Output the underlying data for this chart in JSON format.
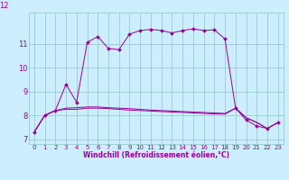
{
  "xlabel": "Windchill (Refroidissement éolien,°C)",
  "bg_color": "#cceeff",
  "line_color": "#990099",
  "grid_color": "#99cccc",
  "xlim": [
    -0.5,
    23.5
  ],
  "ylim": [
    6.8,
    12.3
  ],
  "xticks": [
    0,
    1,
    2,
    3,
    4,
    5,
    6,
    7,
    8,
    9,
    10,
    11,
    12,
    13,
    14,
    15,
    16,
    17,
    18,
    19,
    20,
    21,
    22,
    23
  ],
  "yticks": [
    7,
    8,
    9,
    10,
    11
  ],
  "hours": [
    0,
    1,
    2,
    3,
    4,
    5,
    6,
    7,
    8,
    9,
    10,
    11,
    12,
    13,
    14,
    15,
    16,
    17,
    18,
    19,
    20,
    21,
    22,
    23
  ],
  "windchill": [
    7.3,
    8.0,
    8.2,
    9.3,
    8.55,
    11.05,
    11.3,
    10.8,
    10.75,
    11.4,
    11.55,
    11.6,
    11.55,
    11.45,
    11.55,
    11.62,
    11.55,
    11.58,
    11.2,
    8.3,
    7.8,
    7.55,
    7.45,
    7.7
  ],
  "temp_line1": [
    7.3,
    8.0,
    8.2,
    8.25,
    8.25,
    8.3,
    8.3,
    8.28,
    8.25,
    8.22,
    8.2,
    8.18,
    8.16,
    8.14,
    8.12,
    8.1,
    8.08,
    8.06,
    8.05,
    8.3,
    7.9,
    7.7,
    7.45,
    7.7
  ],
  "temp_line2": [
    7.3,
    8.0,
    8.2,
    8.3,
    8.32,
    8.35,
    8.35,
    8.32,
    8.3,
    8.28,
    8.25,
    8.22,
    8.2,
    8.18,
    8.16,
    8.14,
    8.12,
    8.1,
    8.08,
    8.3,
    7.9,
    7.7,
    7.45,
    7.7
  ],
  "top_label": "12"
}
